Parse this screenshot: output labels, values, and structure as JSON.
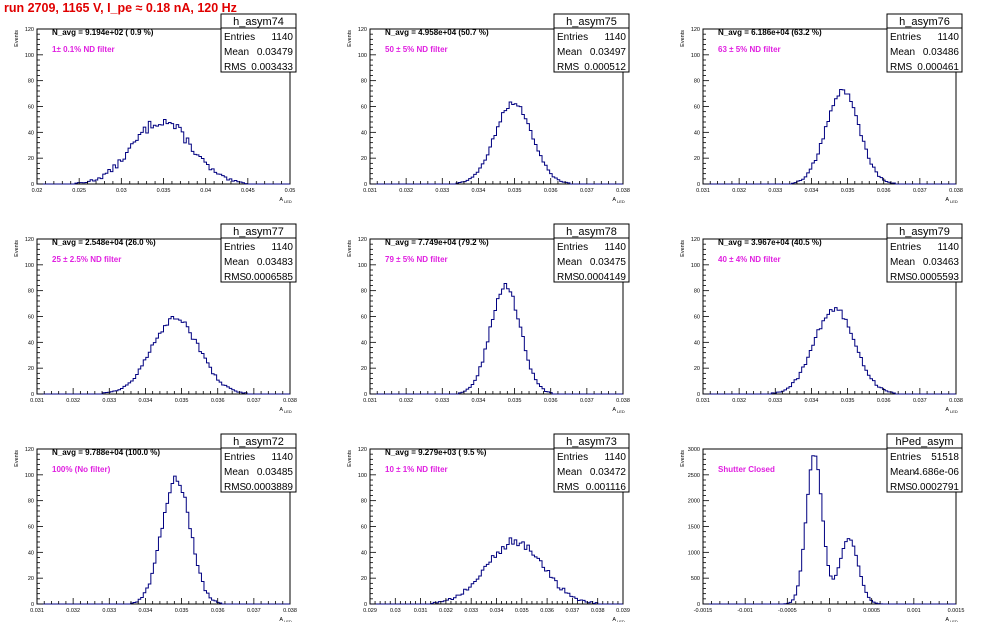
{
  "page": {
    "title": "run 2709,  1165 V, I_pe ≈ 0.18 nA, 120 Hz"
  },
  "chart_data": [
    {
      "type": "histogram",
      "name": "h_asym74",
      "stats": {
        "entries_label": "Entries",
        "entries": "1140",
        "mean_label": "Mean",
        "mean": "0.03479",
        "rms_label": "RMS",
        "rms": "0.003433"
      },
      "annotation": "N_avg = 9.194e+02 ( 0.9 %)",
      "filter_label": "1± 0.1% ND filter",
      "ylabel": "Events",
      "xlabel": "A",
      "xlabel_sub": "LED",
      "xlim": [
        0.02,
        0.05
      ],
      "ylim": [
        0,
        120
      ],
      "xticks": [
        0.02,
        0.025,
        0.03,
        0.035,
        0.04,
        0.045,
        0.05
      ],
      "xtick_labels": [
        "0.02",
        "0.025",
        "0.03",
        "0.035",
        "0.04",
        "0.045",
        "0.05"
      ],
      "yticks": [
        0,
        20,
        40,
        60,
        80,
        100,
        120
      ],
      "ytick_labels": [
        "0",
        "20",
        "40",
        "60",
        "80",
        "100",
        "120"
      ],
      "mean_val": 0.03479,
      "rms_val": 0.003433,
      "peak": 49,
      "shape": "gauss",
      "wiggle": 0.28
    },
    {
      "type": "histogram",
      "name": "h_asym75",
      "stats": {
        "entries_label": "Entries",
        "entries": "1140",
        "mean_label": "Mean",
        "mean": "0.03497",
        "rms_label": "RMS",
        "rms": "0.000512"
      },
      "annotation": "N_avg = 4.958e+04 (50.7 %)",
      "filter_label": "50 ± 5% ND filter",
      "ylabel": "Events",
      "xlabel": "A",
      "xlabel_sub": "LED",
      "xlim": [
        0.031,
        0.038
      ],
      "ylim": [
        0,
        120
      ],
      "xticks": [
        0.031,
        0.032,
        0.033,
        0.034,
        0.035,
        0.036,
        0.037,
        0.038
      ],
      "xtick_labels": [
        "0.031",
        "0.032",
        "0.033",
        "0.034",
        "0.035",
        "0.036",
        "0.037",
        "0.038"
      ],
      "yticks": [
        0,
        20,
        40,
        60,
        80,
        100,
        120
      ],
      "ytick_labels": [
        "0",
        "20",
        "40",
        "60",
        "80",
        "100",
        "120"
      ],
      "mean_val": 0.03497,
      "rms_val": 0.000512,
      "peak": 63,
      "shape": "gauss",
      "wiggle": 0.12
    },
    {
      "type": "histogram",
      "name": "h_asym76",
      "stats": {
        "entries_label": "Entries",
        "entries": "1140",
        "mean_label": "Mean",
        "mean": "0.03486",
        "rms_label": "RMS",
        "rms": "0.000461"
      },
      "annotation": "N_avg = 6.186e+04 (63.2 %)",
      "filter_label": "63 ± 5% ND filter",
      "ylabel": "Events",
      "xlabel": "A",
      "xlabel_sub": "LED",
      "xlim": [
        0.031,
        0.038
      ],
      "ylim": [
        0,
        120
      ],
      "xticks": [
        0.031,
        0.032,
        0.033,
        0.034,
        0.035,
        0.036,
        0.037,
        0.038
      ],
      "xtick_labels": [
        "0.031",
        "0.032",
        "0.033",
        "0.034",
        "0.035",
        "0.036",
        "0.037",
        "0.038"
      ],
      "yticks": [
        0,
        20,
        40,
        60,
        80,
        100,
        120
      ],
      "ytick_labels": [
        "0",
        "20",
        "40",
        "60",
        "80",
        "100",
        "120"
      ],
      "mean_val": 0.03486,
      "rms_val": 0.000461,
      "peak": 72,
      "shape": "gauss",
      "wiggle": 0.14
    },
    {
      "type": "histogram",
      "name": "h_asym77",
      "stats": {
        "entries_label": "Entries",
        "entries": "1140",
        "mean_label": "Mean",
        "mean": "0.03483",
        "rms_label": "RMS",
        "rms": "0.0006585"
      },
      "annotation": "N_avg = 2.548e+04 (26.0 %)",
      "filter_label": "25 ± 2.5% ND filter",
      "ylabel": "Events",
      "xlabel": "A",
      "xlabel_sub": "LED",
      "xlim": [
        0.031,
        0.038
      ],
      "ylim": [
        0,
        120
      ],
      "xticks": [
        0.031,
        0.032,
        0.033,
        0.034,
        0.035,
        0.036,
        0.037,
        0.038
      ],
      "xtick_labels": [
        "0.031",
        "0.032",
        "0.033",
        "0.034",
        "0.035",
        "0.036",
        "0.037",
        "0.038"
      ],
      "yticks": [
        0,
        20,
        40,
        60,
        80,
        100,
        120
      ],
      "ytick_labels": [
        "0",
        "20",
        "40",
        "60",
        "80",
        "100",
        "120"
      ],
      "mean_val": 0.03483,
      "rms_val": 0.0006585,
      "peak": 58,
      "shape": "gauss",
      "wiggle": 0.16
    },
    {
      "type": "histogram",
      "name": "h_asym78",
      "stats": {
        "entries_label": "Entries",
        "entries": "1140",
        "mean_label": "Mean",
        "mean": "0.03475",
        "rms_label": "RMS",
        "rms": "0.0004149"
      },
      "annotation": "N_avg = 7.749e+04 (79.2 %)",
      "filter_label": "79 ± 5% ND filter",
      "ylabel": "Events",
      "xlabel": "A",
      "xlabel_sub": "LED",
      "xlim": [
        0.031,
        0.038
      ],
      "ylim": [
        0,
        120
      ],
      "xticks": [
        0.031,
        0.032,
        0.033,
        0.034,
        0.035,
        0.036,
        0.037,
        0.038
      ],
      "xtick_labels": [
        "0.031",
        "0.032",
        "0.033",
        "0.034",
        "0.035",
        "0.036",
        "0.037",
        "0.038"
      ],
      "yticks": [
        0,
        20,
        40,
        60,
        80,
        100,
        120
      ],
      "ytick_labels": [
        "0",
        "20",
        "40",
        "60",
        "80",
        "100",
        "120"
      ],
      "mean_val": 0.03475,
      "rms_val": 0.0004149,
      "peak": 84,
      "shape": "gauss",
      "wiggle": 0.15
    },
    {
      "type": "histogram",
      "name": "h_asym79",
      "stats": {
        "entries_label": "Entries",
        "entries": "1140",
        "mean_label": "Mean",
        "mean": "0.03463",
        "rms_label": "RMS",
        "rms": "0.0005593"
      },
      "annotation": "N_avg = 3.967e+04 (40.5 %)",
      "filter_label": "40 ± 4% ND filter",
      "ylabel": "Events",
      "xlabel": "A",
      "xlabel_sub": "LED",
      "xlim": [
        0.031,
        0.038
      ],
      "ylim": [
        0,
        120
      ],
      "xticks": [
        0.031,
        0.032,
        0.033,
        0.034,
        0.035,
        0.036,
        0.037,
        0.038
      ],
      "xtick_labels": [
        "0.031",
        "0.032",
        "0.033",
        "0.034",
        "0.035",
        "0.036",
        "0.037",
        "0.038"
      ],
      "yticks": [
        0,
        20,
        40,
        60,
        80,
        100,
        120
      ],
      "ytick_labels": [
        "0",
        "20",
        "40",
        "60",
        "80",
        "100",
        "120"
      ],
      "mean_val": 0.03463,
      "rms_val": 0.0005593,
      "peak": 66,
      "shape": "gauss",
      "wiggle": 0.15
    },
    {
      "type": "histogram",
      "name": "h_asym72",
      "stats": {
        "entries_label": "Entries",
        "entries": "1140",
        "mean_label": "Mean",
        "mean": "0.03485",
        "rms_label": "RMS",
        "rms": "0.0003889"
      },
      "annotation": "N_avg = 9.788e+04 (100.0 %)",
      "filter_label": "100% (No filter)",
      "ylabel": "Events",
      "xlabel": "A",
      "xlabel_sub": "LED",
      "xlim": [
        0.031,
        0.038
      ],
      "ylim": [
        0,
        120
      ],
      "xticks": [
        0.031,
        0.032,
        0.033,
        0.034,
        0.035,
        0.036,
        0.037,
        0.038
      ],
      "xtick_labels": [
        "0.031",
        "0.032",
        "0.033",
        "0.034",
        "0.035",
        "0.036",
        "0.037",
        "0.038"
      ],
      "yticks": [
        0,
        20,
        40,
        60,
        80,
        100,
        120
      ],
      "ytick_labels": [
        "0",
        "20",
        "40",
        "60",
        "80",
        "100",
        "120"
      ],
      "mean_val": 0.03485,
      "rms_val": 0.0003889,
      "peak": 98,
      "shape": "gauss",
      "wiggle": 0.16
    },
    {
      "type": "histogram",
      "name": "h_asym73",
      "stats": {
        "entries_label": "Entries",
        "entries": "1140",
        "mean_label": "Mean",
        "mean": "0.03472",
        "rms_label": "RMS",
        "rms": "0.001116"
      },
      "annotation": "N_avg = 9.279e+03 ( 9.5 %)",
      "filter_label": "10 ± 1% ND filter",
      "ylabel": "Events",
      "xlabel": "A",
      "xlabel_sub": "LED",
      "xlim": [
        0.029,
        0.039
      ],
      "ylim": [
        0,
        120
      ],
      "xticks": [
        0.029,
        0.03,
        0.031,
        0.032,
        0.033,
        0.034,
        0.035,
        0.036,
        0.037,
        0.038,
        0.039
      ],
      "xtick_labels": [
        "0.029",
        "0.03",
        "0.031",
        "0.032",
        "0.033",
        "0.034",
        "0.035",
        "0.036",
        "0.037",
        "0.038",
        "0.039"
      ],
      "yticks": [
        0,
        20,
        40,
        60,
        80,
        100,
        120
      ],
      "ytick_labels": [
        "0",
        "20",
        "40",
        "60",
        "80",
        "100",
        "120"
      ],
      "mean_val": 0.03472,
      "rms_val": 0.001116,
      "peak": 48,
      "shape": "gauss",
      "wiggle": 0.25
    },
    {
      "type": "histogram",
      "name": "hPed_asym",
      "stats": {
        "entries_label": "Entries",
        "entries": "51518",
        "mean_label": "Mean",
        "mean": "4.686e-06",
        "rms_label": "RMS",
        "rms": "0.0002791"
      },
      "annotation": "",
      "filter_label": "Shutter Closed",
      "ylabel": "Events",
      "xlabel": "A",
      "xlabel_sub": "LED",
      "xlim": [
        -0.0015,
        0.0015
      ],
      "ylim": [
        0,
        3000
      ],
      "xticks": [
        -0.0015,
        -0.001,
        -0.0005,
        0,
        0.0005,
        0.001,
        0.0015
      ],
      "xtick_labels": [
        "-0.0015",
        "-0.001",
        "-0.0005",
        "0",
        "0.0005",
        "0.001",
        "0.0015"
      ],
      "yticks": [
        0,
        500,
        1000,
        1500,
        2000,
        2500,
        3000
      ],
      "ytick_labels": [
        "0",
        "500",
        "1000",
        "1500",
        "2000",
        "2500",
        "3000"
      ],
      "mean_val": 4.686e-06,
      "rms_val": 0.0002791,
      "shape": "double",
      "peaks": [
        {
          "mu": -0.00018,
          "sigma": 9.5e-05,
          "height": 2900
        },
        {
          "mu": 0.00023,
          "sigma": 0.00011,
          "height": 1270
        }
      ],
      "valley": 1000,
      "wiggle": 0.03
    }
  ]
}
